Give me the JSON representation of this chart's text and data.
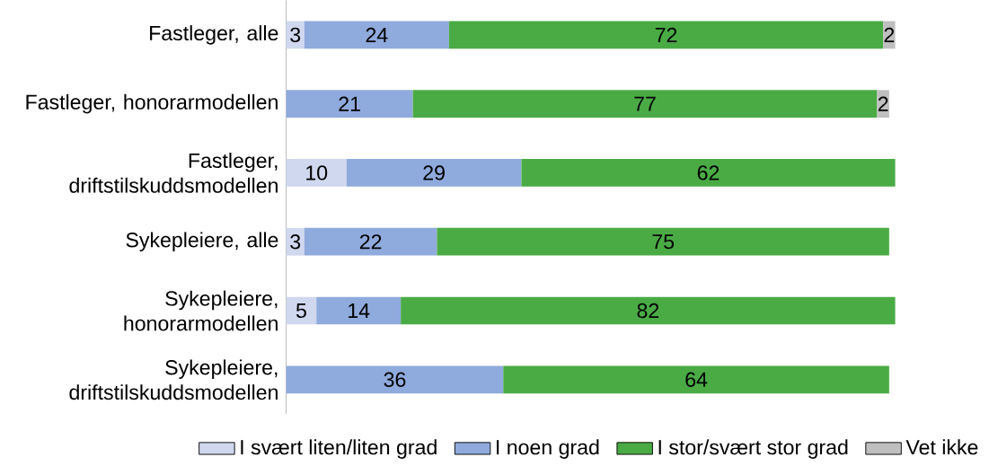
{
  "chart_data": {
    "type": "bar",
    "orientation": "horizontal",
    "stacked": true,
    "data_labels": true,
    "legend": "bottom",
    "tick_labels": "y",
    "xlim": [
      0,
      101
    ],
    "categories": [
      "Fastleger, alle",
      "Fastleger, honorarmodellen",
      "Fastleger, driftstilskuddsmodellen",
      "Sykepleiere, alle",
      "Sykepleiere, honorarmodellen",
      "Sykepleiere, driftstilskuddsmodellen"
    ],
    "series": [
      {
        "name": "I svært liten/liten grad",
        "color": "#cfd8ee",
        "values": [
          3,
          null,
          10,
          3,
          5,
          null
        ]
      },
      {
        "name": "I noen grad",
        "color": "#8faadc",
        "values": [
          24,
          21,
          29,
          22,
          14,
          36
        ]
      },
      {
        "name": "I stor/svært stor grad",
        "color": "#4aab45",
        "values": [
          72,
          77,
          62,
          75,
          82,
          64
        ]
      },
      {
        "name": "Vet ikke",
        "color": "#bfbfbf",
        "values": [
          2,
          2,
          null,
          null,
          null,
          null
        ]
      }
    ]
  }
}
